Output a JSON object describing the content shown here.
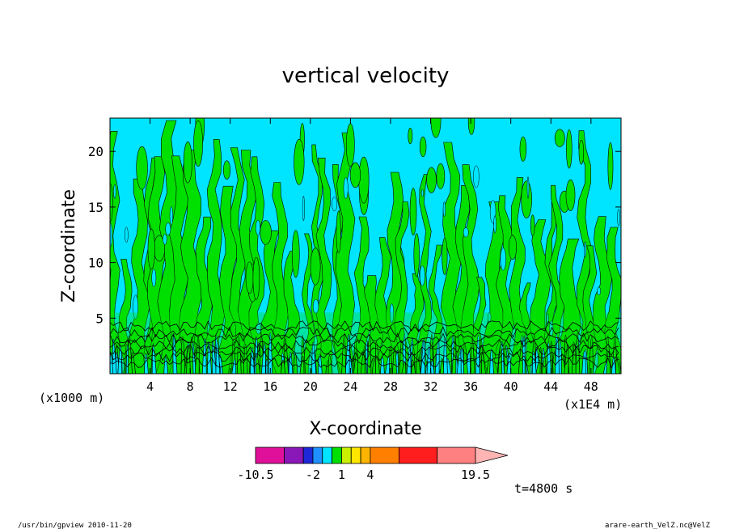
{
  "chart_data": {
    "type": "heatmap",
    "title": "vertical velocity",
    "xlabel": "X-coordinate",
    "ylabel": "Z-coordinate",
    "x_unit_left": "(x1000 m)",
    "x_unit_right": "(x1E4 m)",
    "xlim": [
      0,
      51
    ],
    "ylim": [
      0,
      23
    ],
    "x_ticks": [
      4,
      8,
      12,
      16,
      20,
      24,
      28,
      32,
      36,
      40,
      44,
      48
    ],
    "y_ticks": [
      5,
      10,
      15,
      20
    ],
    "colorbar": {
      "colors": [
        "#e0109a",
        "#8a18b8",
        "#1e28d8",
        "#1e90ff",
        "#00e5ff",
        "#00e000",
        "#c8f000",
        "#ffe600",
        "#ffb400",
        "#ff8000",
        "#ff1e1e",
        "#ff8080",
        "#ffb4b4"
      ],
      "labels": [
        {
          "value": "-10.5",
          "at": 0
        },
        {
          "value": "-2",
          "at": 3
        },
        {
          "value": "1",
          "at": 6
        },
        {
          "value": "4",
          "at": 9
        },
        {
          "value": "19.5",
          "at": 12
        }
      ]
    },
    "field_colors": {
      "negative": "#00e5ff",
      "positive": "#00e000",
      "contour": "#000000"
    }
  },
  "time_label": "t=4800 s",
  "footer_left": "/usr/bin/gpview   2010-11-20",
  "footer_right": "arare-earth_VelZ.nc@VelZ"
}
